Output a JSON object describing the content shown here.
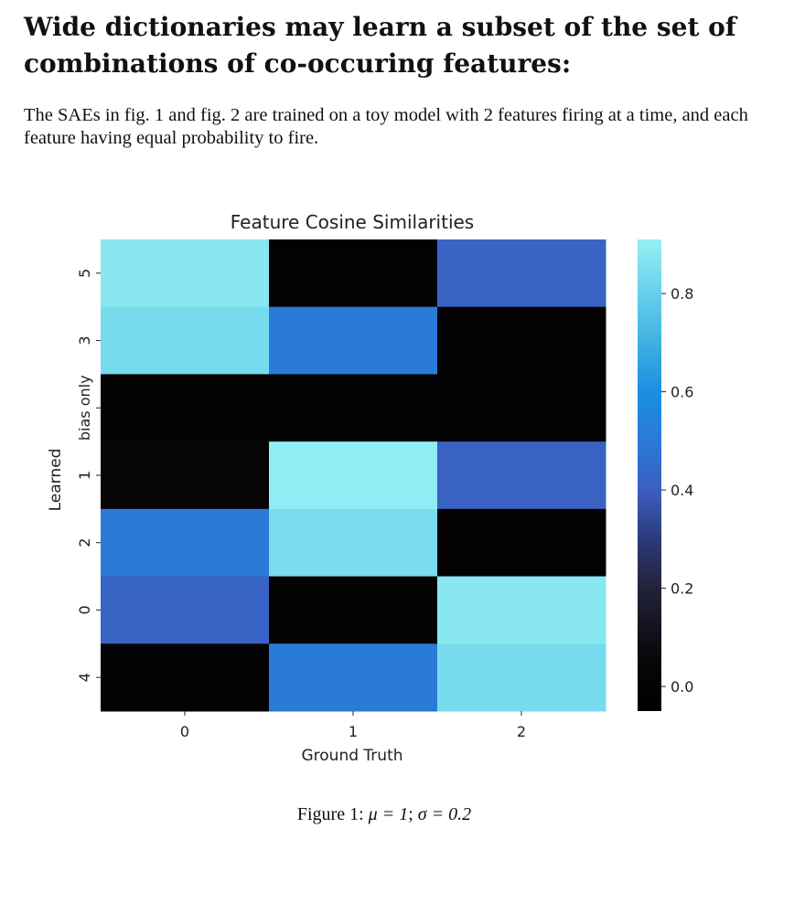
{
  "heading": "Wide dictionaries may learn a subset of the set of combinations of co-occuring features:",
  "paragraph": "The SAEs in fig. 1 and fig. 2 are trained on a toy model with 2 features firing at a time, and each feature having equal probability to fire.",
  "caption": {
    "label": "Figure 1:",
    "mu": "μ = 1",
    "sep": ";",
    "sigma": "σ = 0.2"
  },
  "chart_data": {
    "type": "heatmap",
    "title": "Feature Cosine Similarities",
    "xlabel": "Ground Truth",
    "ylabel": "Learned",
    "x_categories": [
      "0",
      "1",
      "2"
    ],
    "y_categories": [
      "5",
      "3",
      "bias only",
      "1",
      "2",
      "0",
      "4"
    ],
    "values": [
      [
        0.88,
        -0.02,
        0.42
      ],
      [
        0.84,
        0.5,
        0.0
      ],
      [
        0.0,
        0.0,
        0.0
      ],
      [
        0.02,
        0.9,
        0.41
      ],
      [
        0.5,
        0.85,
        0.0
      ],
      [
        0.42,
        0.0,
        0.88
      ],
      [
        0.0,
        0.5,
        0.84
      ]
    ],
    "colorbar": {
      "range": [
        -0.05,
        0.91
      ],
      "ticks": [
        "0.0",
        "0.2",
        "0.4",
        "0.6",
        "0.8"
      ],
      "tick_values": [
        0.0,
        0.2,
        0.4,
        0.6,
        0.8
      ],
      "colormap_stops": [
        {
          "v": -0.05,
          "c": "#000000"
        },
        {
          "v": 0.05,
          "c": "#080607"
        },
        {
          "v": 0.2,
          "c": "#22233a"
        },
        {
          "v": 0.3,
          "c": "#2d3a7a"
        },
        {
          "v": 0.4,
          "c": "#3b5fc0"
        },
        {
          "v": 0.5,
          "c": "#2a7ad8"
        },
        {
          "v": 0.6,
          "c": "#1a8fe0"
        },
        {
          "v": 0.7,
          "c": "#3fb0e0"
        },
        {
          "v": 0.8,
          "c": "#66cfea"
        },
        {
          "v": 0.91,
          "c": "#95f0f4"
        }
      ]
    }
  }
}
